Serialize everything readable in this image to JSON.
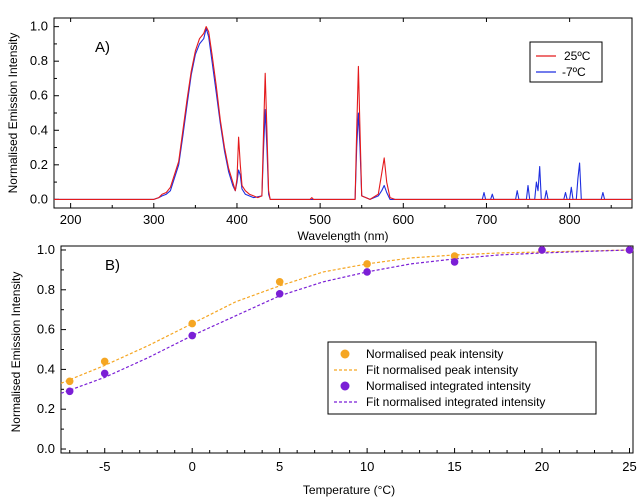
{
  "chart_data": [
    {
      "type": "line",
      "panel_label": "A)",
      "xlabel": "Wavelength (nm)",
      "ylabel": "Normalised Emission Intensity",
      "xlim": [
        180,
        875
      ],
      "ylim": [
        -0.05,
        1.05
      ],
      "x_ticks": [
        200,
        300,
        400,
        500,
        600,
        700,
        800
      ],
      "y_ticks": [
        0.0,
        0.2,
        0.4,
        0.6,
        0.8,
        1.0
      ],
      "x_tick_labels": [
        "200",
        "300",
        "400",
        "500",
        "600",
        "700",
        "800"
      ],
      "y_tick_labels": [
        "0.0",
        "0.2",
        "0.4",
        "0.6",
        "0.8",
        "1.0"
      ],
      "legend_position": "top-right",
      "series": [
        {
          "name": "25ºC",
          "color": "#e41a1c",
          "points": [
            [
              180,
              0
            ],
            [
              300,
              0
            ],
            [
              306,
              0.01
            ],
            [
              310,
              0.03
            ],
            [
              315,
              0.04
            ],
            [
              320,
              0.07
            ],
            [
              330,
              0.22
            ],
            [
              335,
              0.4
            ],
            [
              340,
              0.58
            ],
            [
              345,
              0.74
            ],
            [
              350,
              0.86
            ],
            [
              355,
              0.93
            ],
            [
              360,
              0.96
            ],
            [
              363,
              1.0
            ],
            [
              366,
              0.97
            ],
            [
              370,
              0.84
            ],
            [
              375,
              0.66
            ],
            [
              380,
              0.46
            ],
            [
              385,
              0.3
            ],
            [
              390,
              0.18
            ],
            [
              395,
              0.1
            ],
            [
              398,
              0.05
            ],
            [
              400,
              0.12
            ],
            [
              402,
              0.36
            ],
            [
              404,
              0.2
            ],
            [
              406,
              0.08
            ],
            [
              410,
              0.05
            ],
            [
              415,
              0.03
            ],
            [
              420,
              0.02
            ],
            [
              425,
              0.01
            ],
            [
              430,
              0.02
            ],
            [
              432,
              0.4
            ],
            [
              434,
              0.73
            ],
            [
              436,
              0.4
            ],
            [
              438,
              0.05
            ],
            [
              440,
              0.0
            ],
            [
              488,
              0.0
            ],
            [
              490,
              0.01
            ],
            [
              492,
              0.0
            ],
            [
              542,
              0.0
            ],
            [
              544,
              0.4
            ],
            [
              546,
              0.77
            ],
            [
              548,
              0.4
            ],
            [
              550,
              0.02
            ],
            [
              560,
              0.0
            ],
            [
              570,
              0.03
            ],
            [
              574,
              0.15
            ],
            [
              577,
              0.24
            ],
            [
              580,
              0.1
            ],
            [
              584,
              0.01
            ],
            [
              590,
              0.0
            ],
            [
              875,
              0.0
            ]
          ]
        },
        {
          "name": "-7ºC",
          "color": "#1f2fe0",
          "points": [
            [
              180,
              0
            ],
            [
              300,
              0
            ],
            [
              306,
              0.01
            ],
            [
              310,
              0.02
            ],
            [
              315,
              0.03
            ],
            [
              320,
              0.05
            ],
            [
              330,
              0.2
            ],
            [
              335,
              0.37
            ],
            [
              340,
              0.55
            ],
            [
              345,
              0.72
            ],
            [
              350,
              0.84
            ],
            [
              355,
              0.9
            ],
            [
              360,
              0.93
            ],
            [
              363,
              0.99
            ],
            [
              366,
              0.94
            ],
            [
              370,
              0.8
            ],
            [
              375,
              0.62
            ],
            [
              380,
              0.44
            ],
            [
              385,
              0.28
            ],
            [
              390,
              0.16
            ],
            [
              395,
              0.08
            ],
            [
              398,
              0.05
            ],
            [
              400,
              0.1
            ],
            [
              402,
              0.17
            ],
            [
              404,
              0.14
            ],
            [
              406,
              0.06
            ],
            [
              410,
              0.03
            ],
            [
              420,
              0.01
            ],
            [
              430,
              0.02
            ],
            [
              432,
              0.3
            ],
            [
              434,
              0.52
            ],
            [
              436,
              0.3
            ],
            [
              438,
              0.03
            ],
            [
              440,
              0.0
            ],
            [
              542,
              0.0
            ],
            [
              544,
              0.3
            ],
            [
              546,
              0.5
            ],
            [
              548,
              0.3
            ],
            [
              550,
              0.02
            ],
            [
              560,
              0.0
            ],
            [
              570,
              0.02
            ],
            [
              574,
              0.05
            ],
            [
              577,
              0.08
            ],
            [
              580,
              0.04
            ],
            [
              584,
              0.0
            ],
            [
              695,
              0.0
            ],
            [
              697,
              0.04
            ],
            [
              699,
              0.0
            ],
            [
              705,
              0.0
            ],
            [
              707,
              0.03
            ],
            [
              709,
              0.0
            ],
            [
              735,
              0.0
            ],
            [
              737,
              0.05
            ],
            [
              739,
              0.0
            ],
            [
              748,
              0.0
            ],
            [
              750,
              0.08
            ],
            [
              752,
              0.0
            ],
            [
              758,
              0.0
            ],
            [
              760,
              0.1
            ],
            [
              762,
              0.05
            ],
            [
              764,
              0.19
            ],
            [
              766,
              0.0
            ],
            [
              770,
              0.0
            ],
            [
              772,
              0.05
            ],
            [
              774,
              0.0
            ],
            [
              793,
              0.0
            ],
            [
              795,
              0.04
            ],
            [
              797,
              0.0
            ],
            [
              800,
              0.0
            ],
            [
              802,
              0.07
            ],
            [
              804,
              0.0
            ],
            [
              808,
              0.0
            ],
            [
              810,
              0.12
            ],
            [
              812,
              0.21
            ],
            [
              814,
              0.0
            ],
            [
              838,
              0.0
            ],
            [
              840,
              0.04
            ],
            [
              842,
              0.0
            ],
            [
              875,
              0.0
            ]
          ]
        }
      ]
    },
    {
      "type": "scatter",
      "panel_label": "B)",
      "xlabel": "Temperature (°C)",
      "ylabel": "Normalised Emission Intensity",
      "xlim": [
        -7.5,
        25.2
      ],
      "ylim": [
        -0.02,
        1.02
      ],
      "x_ticks": [
        -5,
        0,
        5,
        10,
        15,
        20,
        25
      ],
      "y_ticks": [
        0.0,
        0.2,
        0.4,
        0.6,
        0.8,
        1.0
      ],
      "x_tick_labels": [
        "-5",
        "0",
        "5",
        "10",
        "15",
        "20",
        "25"
      ],
      "y_tick_labels": [
        "0.0",
        "0.2",
        "0.4",
        "0.6",
        "0.8",
        "1.0"
      ],
      "legend_position": "bottom-right",
      "series": [
        {
          "name": "Normalised peak intensity",
          "style": "markers",
          "color": "#f5a623",
          "x": [
            -7,
            -5,
            0,
            5,
            10,
            15,
            20,
            25
          ],
          "y": [
            0.34,
            0.44,
            0.63,
            0.84,
            0.93,
            0.97,
            1.0,
            1.0
          ]
        },
        {
          "name": "Fit normalised peak intensity",
          "style": "dashed-line",
          "color": "#f5a623",
          "x": [
            -7.5,
            -5,
            -2.5,
            0,
            2.5,
            5,
            7.5,
            10,
            12.5,
            15,
            17.5,
            20,
            22.5,
            25
          ],
          "y": [
            0.33,
            0.42,
            0.52,
            0.63,
            0.74,
            0.82,
            0.89,
            0.93,
            0.96,
            0.975,
            0.985,
            0.99,
            0.995,
            1.0
          ]
        },
        {
          "name": "Normalised  integrated intensity",
          "style": "markers",
          "color": "#7b1fd6",
          "x": [
            -7,
            -5,
            0,
            5,
            10,
            15,
            20,
            25
          ],
          "y": [
            0.29,
            0.38,
            0.57,
            0.78,
            0.89,
            0.94,
            1.0,
            1.0
          ]
        },
        {
          "name": "Fit normalised  integrated intensity",
          "style": "dashed-line",
          "color": "#7b1fd6",
          "x": [
            -7.5,
            -5,
            -2.5,
            0,
            2.5,
            5,
            7.5,
            10,
            12.5,
            15,
            17.5,
            20,
            22.5,
            25
          ],
          "y": [
            0.28,
            0.36,
            0.46,
            0.57,
            0.67,
            0.77,
            0.84,
            0.89,
            0.93,
            0.955,
            0.975,
            0.985,
            0.993,
            1.0
          ]
        }
      ]
    }
  ]
}
